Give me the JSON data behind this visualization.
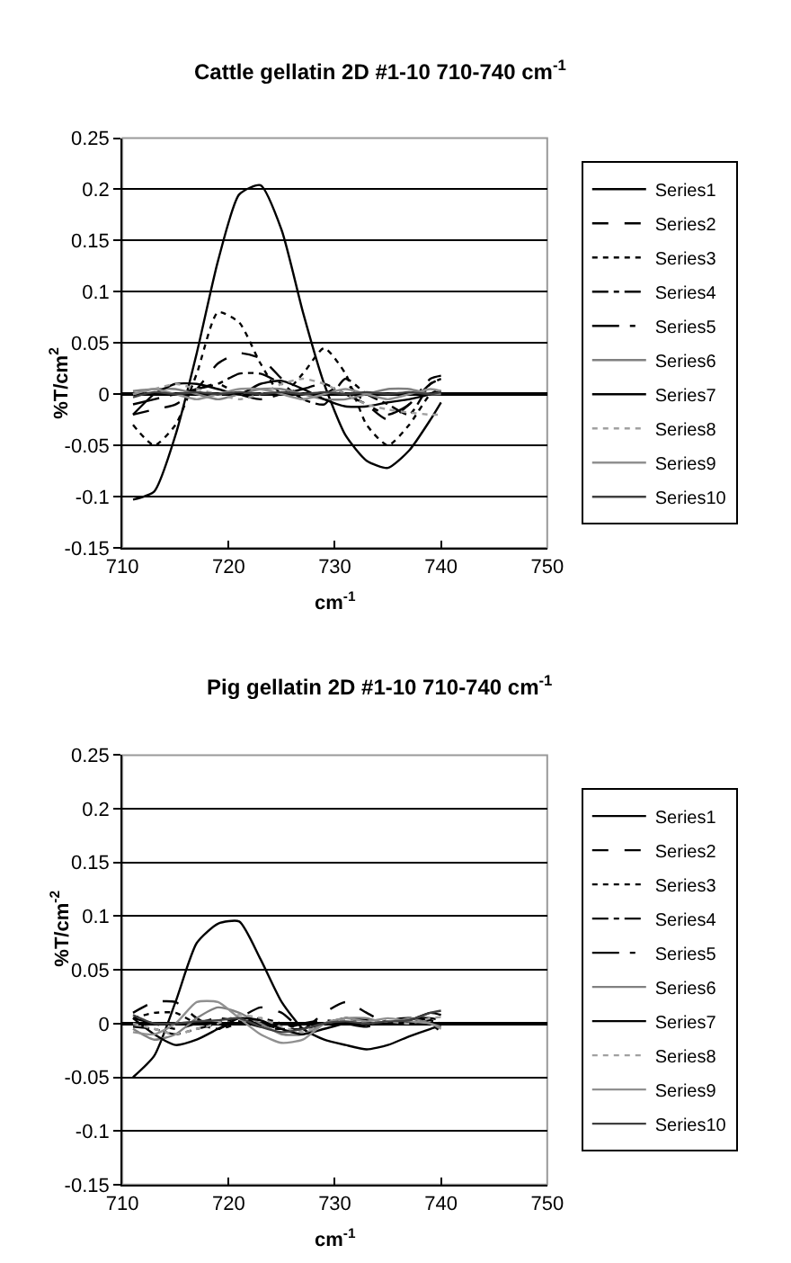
{
  "chart_data": [
    {
      "type": "line",
      "title": "Cattle gellatin 2D #1-10 710-740 cm$^{-1}$",
      "xlabel": "cm$^{-1}$",
      "ylabel": "%T/cm$^{2}$",
      "x": [
        711,
        713,
        715,
        717,
        719,
        721,
        723,
        725,
        727,
        729,
        731,
        733,
        735,
        737,
        739,
        740
      ],
      "xlim": [
        710,
        750
      ],
      "xticks": [
        710,
        720,
        730,
        740,
        750
      ],
      "ylim": [
        -0.15,
        0.25
      ],
      "yticks": [
        -0.15,
        -0.1,
        -0.05,
        0,
        0.05,
        0.1,
        0.15,
        0.2,
        0.25
      ],
      "grid": "y",
      "legend": "right",
      "marker": "none",
      "series": [
        {
          "name": "Series1",
          "color": "#000000",
          "line_style": "solid",
          "values": [
            -0.103,
            -0.095,
            -0.04,
            0.04,
            0.13,
            0.195,
            0.204,
            0.16,
            0.08,
            0.01,
            -0.04,
            -0.065,
            -0.072,
            -0.055,
            -0.025,
            -0.008
          ]
        },
        {
          "name": "Series2",
          "color": "#000000",
          "line_style": "dashed",
          "values": [
            -0.02,
            -0.015,
            -0.01,
            0.005,
            0.03,
            0.04,
            0.035,
            0.015,
            -0.005,
            0.0,
            0.01,
            -0.01,
            -0.025,
            -0.01,
            0.01,
            0.015
          ]
        },
        {
          "name": "Series3",
          "color": "#000000",
          "line_style": "dotted",
          "values": [
            -0.03,
            -0.05,
            -0.03,
            0.02,
            0.08,
            0.07,
            0.03,
            0.0,
            0.02,
            0.045,
            0.02,
            -0.03,
            -0.05,
            -0.03,
            0.0,
            0.005
          ]
        },
        {
          "name": "Series4",
          "color": "#000000",
          "line_style": "dashdot",
          "values": [
            0.0,
            0.0,
            0.0,
            0.005,
            0.01,
            0.02,
            0.02,
            0.01,
            -0.005,
            -0.01,
            0.015,
            0.0,
            -0.01,
            -0.02,
            0.01,
            0.015
          ]
        },
        {
          "name": "Series5",
          "color": "#000000",
          "line_style": "longdashdot",
          "values": [
            -0.01,
            -0.005,
            0.0,
            0.005,
            0.01,
            0.0,
            -0.005,
            0.0,
            0.005,
            0.01,
            0.0,
            -0.01,
            -0.02,
            -0.01,
            0.015,
            0.018
          ]
        },
        {
          "name": "Series6",
          "color": "#808080",
          "line_style": "solid",
          "values": [
            0.003,
            0.005,
            0.005,
            0.0,
            -0.005,
            0.0,
            0.005,
            0.005,
            0.0,
            -0.005,
            -0.005,
            0.0,
            0.005,
            0.005,
            0.0,
            0.0
          ]
        },
        {
          "name": "Series7",
          "color": "#000000",
          "line_style": "solid",
          "values": [
            -0.02,
            0.0,
            0.01,
            0.01,
            0.005,
            0.0,
            0.01,
            0.013,
            0.005,
            -0.005,
            -0.012,
            -0.012,
            -0.008,
            -0.005,
            0.0,
            0.003
          ]
        },
        {
          "name": "Series8",
          "color": "#a0a0a0",
          "line_style": "dotted",
          "values": [
            0.0,
            0.005,
            0.01,
            0.005,
            0.0,
            -0.005,
            0.0,
            0.01,
            0.015,
            0.01,
            0.0,
            -0.01,
            -0.015,
            -0.018,
            -0.02,
            -0.02
          ]
        },
        {
          "name": "Series9",
          "color": "#909090",
          "line_style": "solid",
          "values": [
            0.0,
            0.005,
            0.0,
            -0.005,
            0.0,
            0.005,
            0.005,
            0.0,
            -0.005,
            0.0,
            0.005,
            0.0,
            -0.005,
            0.0,
            0.005,
            0.003
          ]
        },
        {
          "name": "Series10",
          "color": "#404040",
          "line_style": "solid",
          "values": [
            -0.003,
            0.002,
            0.0,
            0.002,
            0.0,
            0.002,
            0.0,
            0.002,
            0.0,
            0.002,
            0.0,
            0.002,
            0.0,
            0.002,
            0.0,
            0.002
          ]
        }
      ]
    },
    {
      "type": "line",
      "title": "Pig gellatin 2D #1-10 710-740 cm$^{-1}$",
      "xlabel": "cm$^{-1}$",
      "ylabel": "%T/cm$^{-2}$",
      "x": [
        711,
        713,
        715,
        717,
        719,
        721,
        723,
        725,
        727,
        729,
        731,
        733,
        735,
        737,
        739,
        740
      ],
      "xlim": [
        710,
        750
      ],
      "xticks": [
        710,
        720,
        730,
        740,
        750
      ],
      "ylim": [
        -0.15,
        0.25
      ],
      "yticks": [
        -0.15,
        -0.1,
        -0.05,
        0,
        0.05,
        0.1,
        0.15,
        0.2,
        0.25
      ],
      "grid": "y",
      "legend": "right",
      "marker": "none",
      "series": [
        {
          "name": "Series1",
          "color": "#000000",
          "line_style": "solid",
          "values": [
            -0.05,
            -0.03,
            0.02,
            0.075,
            0.093,
            0.095,
            0.06,
            0.02,
            -0.005,
            -0.015,
            -0.02,
            -0.024,
            -0.02,
            -0.012,
            -0.005,
            -0.002
          ]
        },
        {
          "name": "Series2",
          "color": "#000000",
          "line_style": "dashed",
          "values": [
            0.01,
            0.02,
            0.02,
            0.005,
            -0.005,
            0.005,
            0.015,
            0.01,
            -0.005,
            0.01,
            0.02,
            0.01,
            0.0,
            0.005,
            0.005,
            0.003
          ]
        },
        {
          "name": "Series3",
          "color": "#000000",
          "line_style": "dotted",
          "values": [
            0.005,
            0.01,
            0.01,
            0.0,
            -0.005,
            0.0,
            0.005,
            0.0,
            -0.005,
            0.0,
            0.005,
            0.0,
            0.0,
            0.005,
            0.0,
            -0.008
          ]
        },
        {
          "name": "Series4",
          "color": "#000000",
          "line_style": "dashdot",
          "values": [
            -0.003,
            -0.005,
            -0.01,
            -0.005,
            0.0,
            0.005,
            0.0,
            -0.005,
            -0.005,
            0.0,
            0.005,
            0.003,
            0.0,
            0.005,
            0.003,
            0.0
          ]
        },
        {
          "name": "Series5",
          "color": "#000000",
          "line_style": "longdashdot",
          "values": [
            0.005,
            0.0,
            -0.005,
            0.0,
            0.005,
            0.002,
            -0.003,
            -0.005,
            0.0,
            0.003,
            0.0,
            -0.003,
            0.003,
            0.005,
            0.0,
            -0.003
          ]
        },
        {
          "name": "Series6",
          "color": "#808080",
          "line_style": "solid",
          "values": [
            -0.005,
            -0.015,
            -0.01,
            0.005,
            0.015,
            0.01,
            0.0,
            -0.01,
            -0.01,
            0.0,
            0.005,
            0.005,
            0.0,
            0.005,
            0.0,
            -0.003
          ]
        },
        {
          "name": "Series7",
          "color": "#000000",
          "line_style": "solid",
          "values": [
            0.005,
            -0.01,
            -0.02,
            -0.015,
            -0.005,
            0.005,
            0.003,
            -0.005,
            -0.01,
            -0.005,
            0.0,
            0.0,
            0.0,
            0.003,
            0.01,
            0.008
          ]
        },
        {
          "name": "Series8",
          "color": "#a0a0a0",
          "line_style": "dotted",
          "values": [
            0.0,
            -0.005,
            -0.01,
            -0.005,
            0.0,
            0.008,
            0.005,
            -0.003,
            -0.008,
            0.0,
            0.003,
            0.0,
            0.002,
            0.0,
            0.005,
            0.006
          ]
        },
        {
          "name": "Series9",
          "color": "#909090",
          "line_style": "solid",
          "values": [
            -0.008,
            -0.01,
            0.0,
            0.02,
            0.02,
            0.005,
            -0.01,
            -0.018,
            -0.015,
            0.0,
            0.005,
            0.002,
            0.005,
            0.002,
            0.0,
            -0.005
          ]
        },
        {
          "name": "Series10",
          "color": "#404040",
          "line_style": "solid",
          "values": [
            0.008,
            0.0,
            0.0,
            0.002,
            0.003,
            0.005,
            -0.003,
            -0.008,
            -0.005,
            0.0,
            0.002,
            0.0,
            0.002,
            0.003,
            0.01,
            0.012
          ]
        }
      ]
    }
  ]
}
